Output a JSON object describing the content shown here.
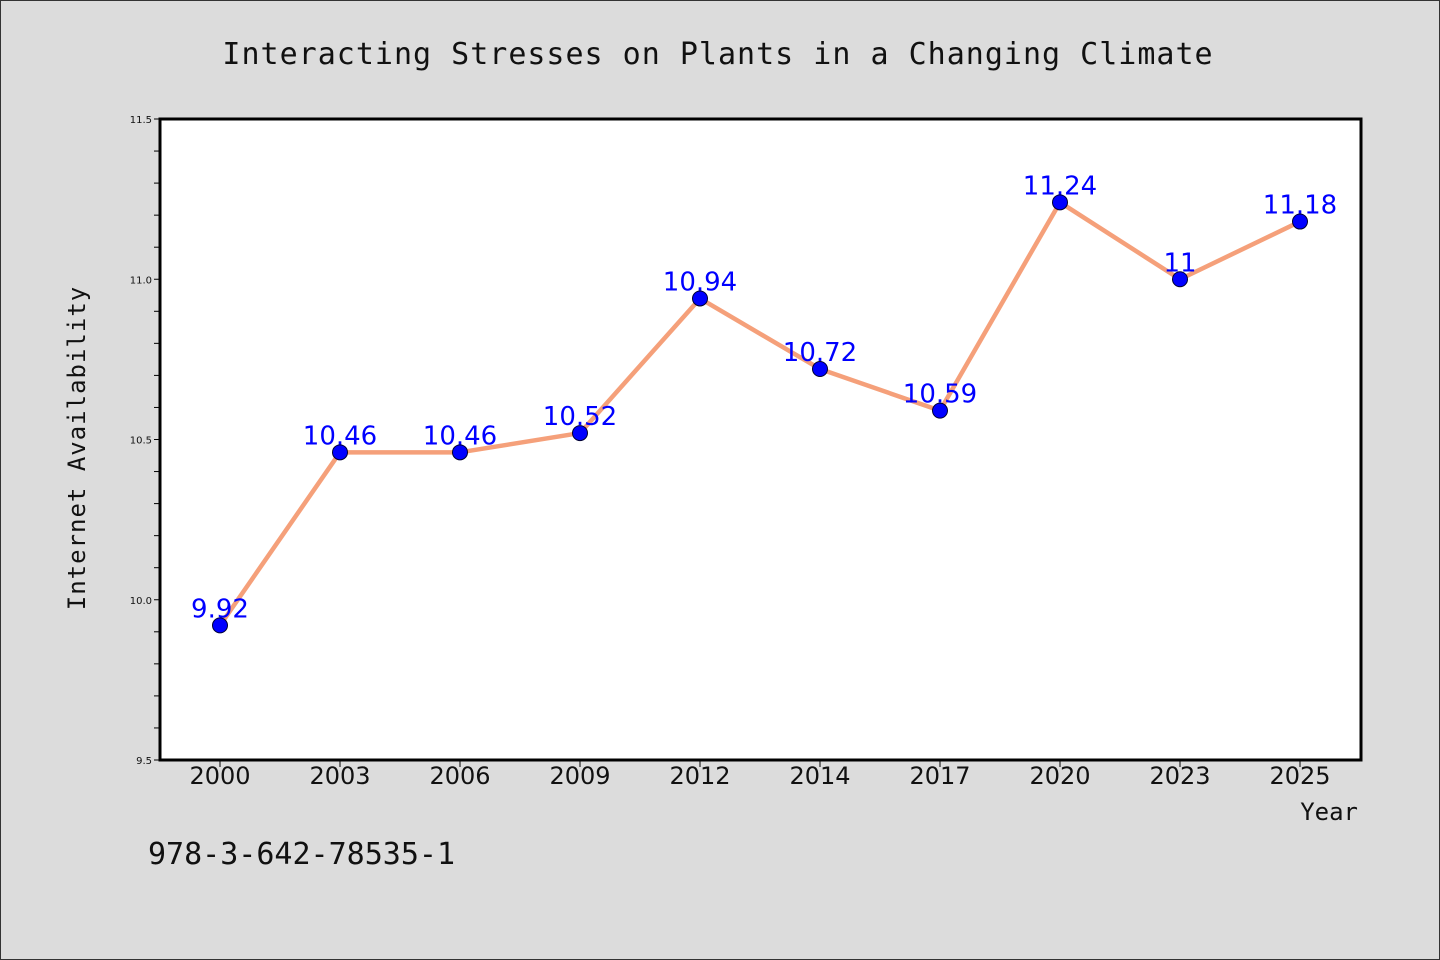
{
  "chart_data": {
    "type": "line",
    "title": "Interacting Stresses on Plants in a Changing Climate",
    "xlabel": "Year",
    "ylabel": "Internet Availability",
    "categories": [
      "2000",
      "2003",
      "2006",
      "2009",
      "2012",
      "2014",
      "2017",
      "2020",
      "2023",
      "2025"
    ],
    "series": [
      {
        "values": [
          9.92,
          10.46,
          10.46,
          10.52,
          10.94,
          10.72,
          10.59,
          11.24,
          11,
          11.18
        ],
        "line_color": "#f5a07a",
        "marker_color": "#0000ff"
      }
    ],
    "data_labels": [
      "9.92",
      "10.46",
      "10.46",
      "10.52",
      "10.94",
      "10.72",
      "10.59",
      "11.24",
      "11",
      "11.18"
    ],
    "ylim": [
      9.5,
      11.5
    ],
    "yticks": [
      "9.5",
      "10.0",
      "10.5",
      "11.0",
      "11.5"
    ],
    "grid": false,
    "legend": "none"
  },
  "footnote": "978-3-642-78535-1",
  "colors": {
    "background": "#dcdcdc",
    "plot_background": "#ffffff",
    "line": "#f5a07a",
    "marker": "#0000ff",
    "data_label": "#0000ff"
  }
}
